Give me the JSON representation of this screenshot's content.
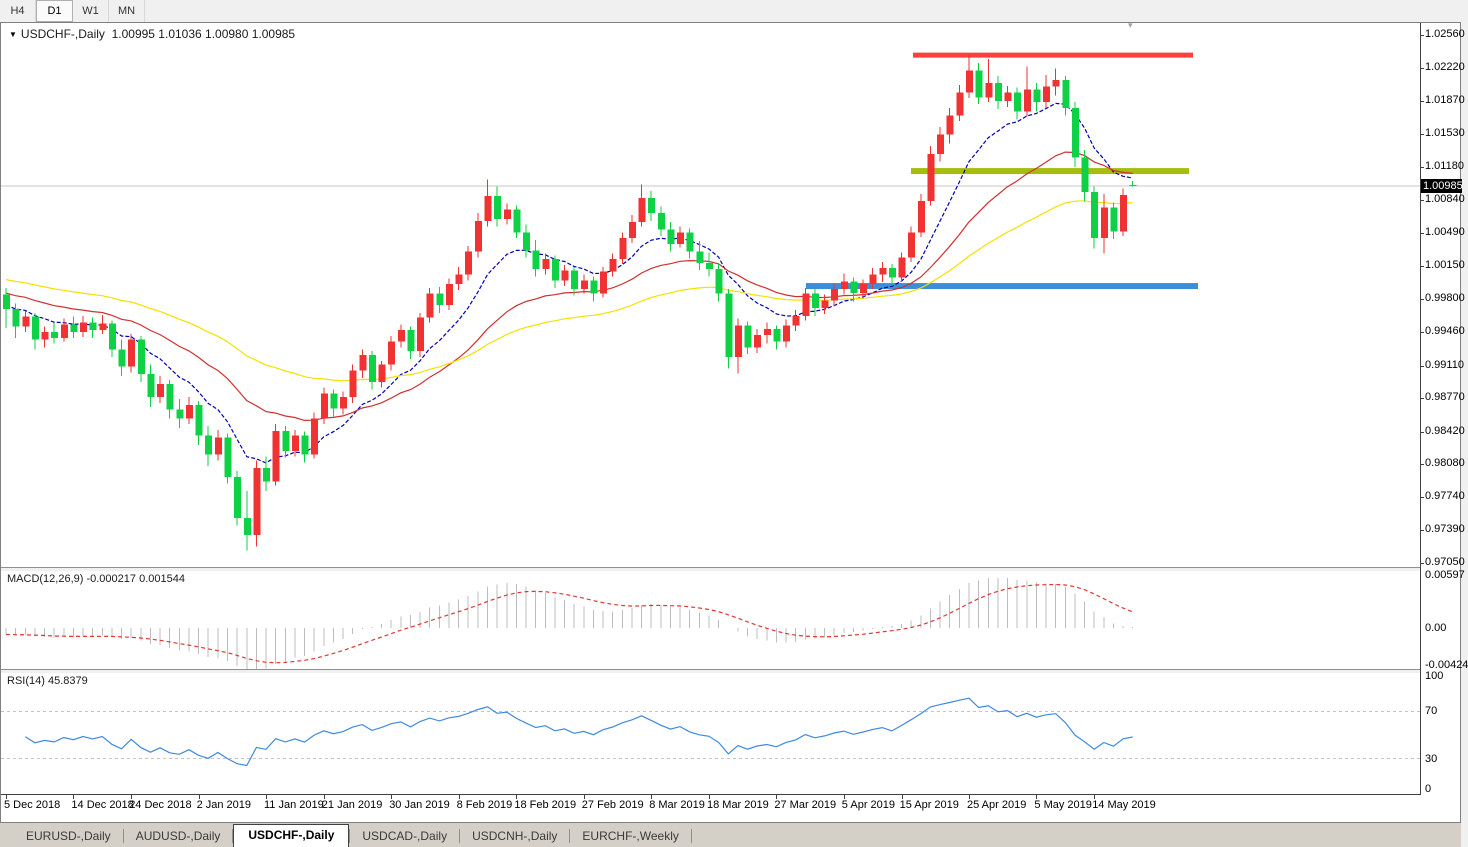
{
  "toolbar": {
    "timeframes": [
      {
        "label": "H4",
        "active": false
      },
      {
        "label": "D1",
        "active": true
      },
      {
        "label": "W1",
        "active": false
      },
      {
        "label": "MN",
        "active": false
      }
    ]
  },
  "window": {
    "title_symbol": "USDCHF-,Daily",
    "title_values": "1.00995 1.01036 1.00980 1.00985",
    "icons": {
      "symbol_dropdown": "▼",
      "chart_shift_marker": "▾"
    }
  },
  "chart_data": {
    "type": "candlestick",
    "symbol": "USDCHF",
    "period": "Daily",
    "first_bar_date": "5 Dec 2018",
    "colors": {
      "up_candle": "#F03232",
      "down_candle": "#0ED145",
      "current_price_line": "#C8C8C8",
      "price_tag_bg": "#000000",
      "price_tag_fg": "#FFFFFF"
    },
    "price_axis": {
      "labels": [
        "1.02560",
        "1.02220",
        "1.01870",
        "1.01530",
        "1.01180",
        "1.00840",
        "1.00490",
        "1.00150",
        "0.99800",
        "0.99460",
        "0.99110",
        "0.98770",
        "0.98420",
        "0.98080",
        "0.97740",
        "0.97390",
        "0.97050"
      ],
      "current_price": "1.00985",
      "current_price_value": 1.00985
    },
    "x_ticks": [
      {
        "label": "5 Dec 2018",
        "i": 0
      },
      {
        "label": "14 Dec 2018",
        "i": 7
      },
      {
        "label": "24 Dec 2018",
        "i": 13
      },
      {
        "label": "2 Jan 2019",
        "i": 20
      },
      {
        "label": "11 Jan 2019",
        "i": 27
      },
      {
        "label": "21 Jan 2019",
        "i": 33
      },
      {
        "label": "30 Jan 2019",
        "i": 40
      },
      {
        "label": "8 Feb 2019",
        "i": 47
      },
      {
        "label": "18 Feb 2019",
        "i": 53
      },
      {
        "label": "27 Feb 2019",
        "i": 60
      },
      {
        "label": "8 Mar 2019",
        "i": 67
      },
      {
        "label": "18 Mar 2019",
        "i": 73
      },
      {
        "label": "27 Mar 2019",
        "i": 80
      },
      {
        "label": "5 Apr 2019",
        "i": 87
      },
      {
        "label": "15 Apr 2019",
        "i": 93
      },
      {
        "label": "25 Apr 2019",
        "i": 100
      },
      {
        "label": "5 May 2019",
        "i": 107
      },
      {
        "label": "14 May 2019",
        "i": 113
      }
    ],
    "candles": [
      [
        0.9985,
        0.9992,
        0.995,
        0.997
      ],
      [
        0.997,
        0.9976,
        0.994,
        0.9952
      ],
      [
        0.9952,
        0.9968,
        0.9946,
        0.9962
      ],
      [
        0.9962,
        0.9966,
        0.9928,
        0.9938
      ],
      [
        0.9938,
        0.9952,
        0.993,
        0.9946
      ],
      [
        0.9946,
        0.9956,
        0.9934,
        0.994
      ],
      [
        0.994,
        0.996,
        0.9936,
        0.9954
      ],
      [
        0.9954,
        0.9962,
        0.994,
        0.9946
      ],
      [
        0.9946,
        0.9963,
        0.9941,
        0.9956
      ],
      [
        0.9956,
        0.9961,
        0.994,
        0.9948
      ],
      [
        0.9948,
        0.9964,
        0.9944,
        0.9955
      ],
      [
        0.9955,
        0.9958,
        0.992,
        0.9928
      ],
      [
        0.9928,
        0.9938,
        0.99,
        0.991
      ],
      [
        0.991,
        0.9944,
        0.9904,
        0.9938
      ],
      [
        0.9938,
        0.9942,
        0.9894,
        0.9902
      ],
      [
        0.9902,
        0.9912,
        0.9868,
        0.9878
      ],
      [
        0.9878,
        0.99,
        0.9872,
        0.9892
      ],
      [
        0.9892,
        0.9896,
        0.9856,
        0.9865
      ],
      [
        0.9865,
        0.9876,
        0.9846,
        0.9856
      ],
      [
        0.9856,
        0.9878,
        0.985,
        0.987
      ],
      [
        0.987,
        0.9874,
        0.9828,
        0.9838
      ],
      [
        0.9838,
        0.9848,
        0.9806,
        0.9818
      ],
      [
        0.9818,
        0.9844,
        0.9812,
        0.9836
      ],
      [
        0.9836,
        0.984,
        0.9788,
        0.9795
      ],
      [
        0.9795,
        0.9801,
        0.9744,
        0.9752
      ],
      [
        0.9752,
        0.978,
        0.9718,
        0.9734
      ],
      [
        0.9734,
        0.9812,
        0.9722,
        0.9804
      ],
      [
        0.9804,
        0.9816,
        0.978,
        0.979
      ],
      [
        0.979,
        0.985,
        0.9786,
        0.9843
      ],
      [
        0.9843,
        0.9848,
        0.9815,
        0.9822
      ],
      [
        0.9822,
        0.9844,
        0.9816,
        0.9838
      ],
      [
        0.9838,
        0.9842,
        0.981,
        0.9818
      ],
      [
        0.9818,
        0.9862,
        0.9814,
        0.9856
      ],
      [
        0.9856,
        0.9888,
        0.985,
        0.9882
      ],
      [
        0.9882,
        0.9886,
        0.9858,
        0.9866
      ],
      [
        0.9866,
        0.9884,
        0.986,
        0.9878
      ],
      [
        0.9878,
        0.9912,
        0.9872,
        0.9906
      ],
      [
        0.9906,
        0.9928,
        0.9898,
        0.9922
      ],
      [
        0.9922,
        0.9926,
        0.9886,
        0.9894
      ],
      [
        0.9894,
        0.9916,
        0.9888,
        0.9912
      ],
      [
        0.9912,
        0.9942,
        0.9906,
        0.9936
      ],
      [
        0.9936,
        0.9954,
        0.993,
        0.9948
      ],
      [
        0.9948,
        0.9952,
        0.9918,
        0.9926
      ],
      [
        0.9926,
        0.9966,
        0.992,
        0.9961
      ],
      [
        0.9961,
        0.9992,
        0.9956,
        0.9986
      ],
      [
        0.9986,
        0.9993,
        0.9966,
        0.9974
      ],
      [
        0.9974,
        1.0002,
        0.9969,
        0.9996
      ],
      [
        0.9996,
        1.0014,
        0.999,
        1.0006
      ],
      [
        1.0006,
        1.0036,
        1.0,
        1.003
      ],
      [
        1.003,
        1.007,
        1.0024,
        1.0062
      ],
      [
        1.0062,
        1.0105,
        1.0056,
        1.0088
      ],
      [
        1.0088,
        1.0098,
        1.0056,
        1.0064
      ],
      [
        1.0064,
        1.008,
        1.0058,
        1.0074
      ],
      [
        1.0074,
        1.0078,
        1.0044,
        1.005
      ],
      [
        1.005,
        1.0058,
        1.0024,
        1.0031
      ],
      [
        1.0031,
        1.0042,
        1.0004,
        1.0012
      ],
      [
        1.0012,
        1.0028,
        1.0006,
        1.0022
      ],
      [
        1.0022,
        1.0026,
        0.9992,
        1.0
      ],
      [
        1.0,
        1.0016,
        0.9994,
        1.001
      ],
      [
        1.001,
        1.0014,
        0.9984,
        0.9991
      ],
      [
        0.9991,
        1.0006,
        0.9986,
        1.0
      ],
      [
        1.0,
        1.0004,
        0.9978,
        0.9986
      ],
      [
        0.9986,
        1.0014,
        0.9982,
        1.0009
      ],
      [
        1.0009,
        1.0028,
        1.0004,
        1.0022
      ],
      [
        1.0022,
        1.005,
        1.0017,
        1.0044
      ],
      [
        1.0044,
        1.0068,
        1.0039,
        1.0061
      ],
      [
        1.0061,
        1.01,
        1.0056,
        1.0086
      ],
      [
        1.0086,
        1.0093,
        1.0062,
        1.007
      ],
      [
        1.007,
        1.0077,
        1.0046,
        1.0053
      ],
      [
        1.0053,
        1.0061,
        1.003,
        1.0038
      ],
      [
        1.0038,
        1.0056,
        1.0034,
        1.005
      ],
      [
        1.005,
        1.0054,
        1.0023,
        1.003
      ],
      [
        1.003,
        1.0041,
        1.0011,
        1.0018
      ],
      [
        1.0018,
        1.0029,
        1.0004,
        1.0012
      ],
      [
        1.0012,
        1.0017,
        0.9978,
        0.9986
      ],
      [
        0.9986,
        0.9991,
        0.9908,
        0.992
      ],
      [
        0.992,
        0.996,
        0.9903,
        0.9953
      ],
      [
        0.9953,
        0.9957,
        0.9923,
        0.993
      ],
      [
        0.993,
        0.9949,
        0.9924,
        0.9943
      ],
      [
        0.9943,
        0.9956,
        0.9934,
        0.9949
      ],
      [
        0.9949,
        0.9953,
        0.9928,
        0.9936
      ],
      [
        0.9936,
        0.9959,
        0.993,
        0.9953
      ],
      [
        0.9953,
        0.9969,
        0.9947,
        0.9963
      ],
      [
        0.9963,
        0.9992,
        0.9958,
        0.9986
      ],
      [
        0.9986,
        0.9991,
        0.9963,
        0.9971
      ],
      [
        0.9971,
        0.9985,
        0.9965,
        0.9979
      ],
      [
        0.9979,
        0.9997,
        0.9973,
        0.9991
      ],
      [
        0.9991,
        1.0007,
        0.9985,
        0.9999
      ],
      [
        0.9999,
        1.0003,
        0.9978,
        0.9987
      ],
      [
        0.9987,
        1.0001,
        0.9981,
        0.9996
      ],
      [
        0.9996,
        1.0013,
        0.9991,
        1.0006
      ],
      [
        1.0006,
        1.0019,
        0.9998,
        1.0013
      ],
      [
        1.0013,
        1.0017,
        0.9994,
        1.0003
      ],
      [
        1.0003,
        1.0029,
        0.9999,
        1.0024
      ],
      [
        1.0024,
        1.0056,
        1.0019,
        1.005
      ],
      [
        1.005,
        1.009,
        1.0045,
        1.0083
      ],
      [
        1.0083,
        1.014,
        1.0078,
        1.0132
      ],
      [
        1.0132,
        1.016,
        1.0124,
        1.0152
      ],
      [
        1.0152,
        1.018,
        1.0143,
        1.0172
      ],
      [
        1.0172,
        1.0204,
        1.0166,
        1.0196
      ],
      [
        1.0196,
        1.0235,
        1.019,
        1.0219
      ],
      [
        1.0219,
        1.0227,
        1.0184,
        1.0191
      ],
      [
        1.0191,
        1.0231,
        1.0186,
        1.0206
      ],
      [
        1.0206,
        1.0213,
        1.0179,
        1.0187
      ],
      [
        1.0187,
        1.0203,
        1.0181,
        1.0196
      ],
      [
        1.0196,
        1.0201,
        1.0168,
        1.0176
      ],
      [
        1.0176,
        1.0223,
        1.0171,
        1.0199
      ],
      [
        1.0199,
        1.0206,
        1.0176,
        1.0186
      ],
      [
        1.0186,
        1.0214,
        1.018,
        1.0202
      ],
      [
        1.0202,
        1.0221,
        1.0193,
        1.0209
      ],
      [
        1.0209,
        1.0213,
        1.0172,
        1.018
      ],
      [
        1.018,
        1.0186,
        1.0118,
        1.0128
      ],
      [
        1.0128,
        1.0136,
        1.0082,
        1.0092
      ],
      [
        1.0092,
        1.0098,
        1.0033,
        1.0044
      ],
      [
        1.0044,
        1.009,
        1.0028,
        1.0076
      ],
      [
        1.0076,
        1.0081,
        1.0043,
        1.0051
      ],
      [
        1.0051,
        1.0096,
        1.0046,
        1.0089
      ],
      [
        1.00995,
        1.01036,
        1.0098,
        1.00985
      ]
    ],
    "overlay_lines": [
      {
        "name": "resistance-line",
        "color": "#FA4040",
        "price": 1.0235,
        "x1": 912,
        "x2": 1192,
        "width": 5
      },
      {
        "name": "broken-support-line",
        "color": "#A6BE0B",
        "price": 1.0114,
        "x1": 910,
        "x2": 1188,
        "width": 6
      },
      {
        "name": "support-line",
        "color": "#3C8ED6",
        "price": 0.9994,
        "x1": 805,
        "x2": 1197,
        "width": 6
      }
    ],
    "moving_averages": [
      {
        "name": "ma-fast",
        "period": 10,
        "method": "ema",
        "color": "#0000B4",
        "dash": "4 2",
        "seed_offset": 0.0005
      },
      {
        "name": "ma-mid",
        "period": 25,
        "method": "ema",
        "color": "#D03030",
        "dash": "",
        "seed_offset": 0.0018
      },
      {
        "name": "ma-slow",
        "period": 50,
        "method": "ema",
        "color": "#F2E200",
        "dash": "",
        "seed_offset": 0.0032
      }
    ],
    "indicators": [
      {
        "name": "MACD",
        "label": "MACD(12,26,9) -0.000217 0.001544",
        "fast": 12,
        "slow": 26,
        "signal": 9,
        "axis_labels": [
          "0.00597",
          "0.00",
          "-0.00424"
        ],
        "histogram_color": "#BDBDBD",
        "signal_color": "#E23636"
      },
      {
        "name": "RSI",
        "label": "RSI(14) 45.8379",
        "period": 14,
        "axis_labels": [
          "100",
          "70",
          "30",
          "0"
        ],
        "levels": [
          70,
          30
        ],
        "line_color": "#3D8AE0",
        "level_color": "#C4C4C4"
      }
    ]
  },
  "tabs": {
    "items": [
      {
        "label": "EURUSD-,Daily",
        "active": false
      },
      {
        "label": "AUDUSD-,Daily",
        "active": false
      },
      {
        "label": "USDCHF-,Daily",
        "active": true
      },
      {
        "label": "USDCAD-,Daily",
        "active": false
      },
      {
        "label": "USDCNH-,Daily",
        "active": false
      },
      {
        "label": "EURCHF-,Weekly",
        "active": false
      }
    ]
  }
}
